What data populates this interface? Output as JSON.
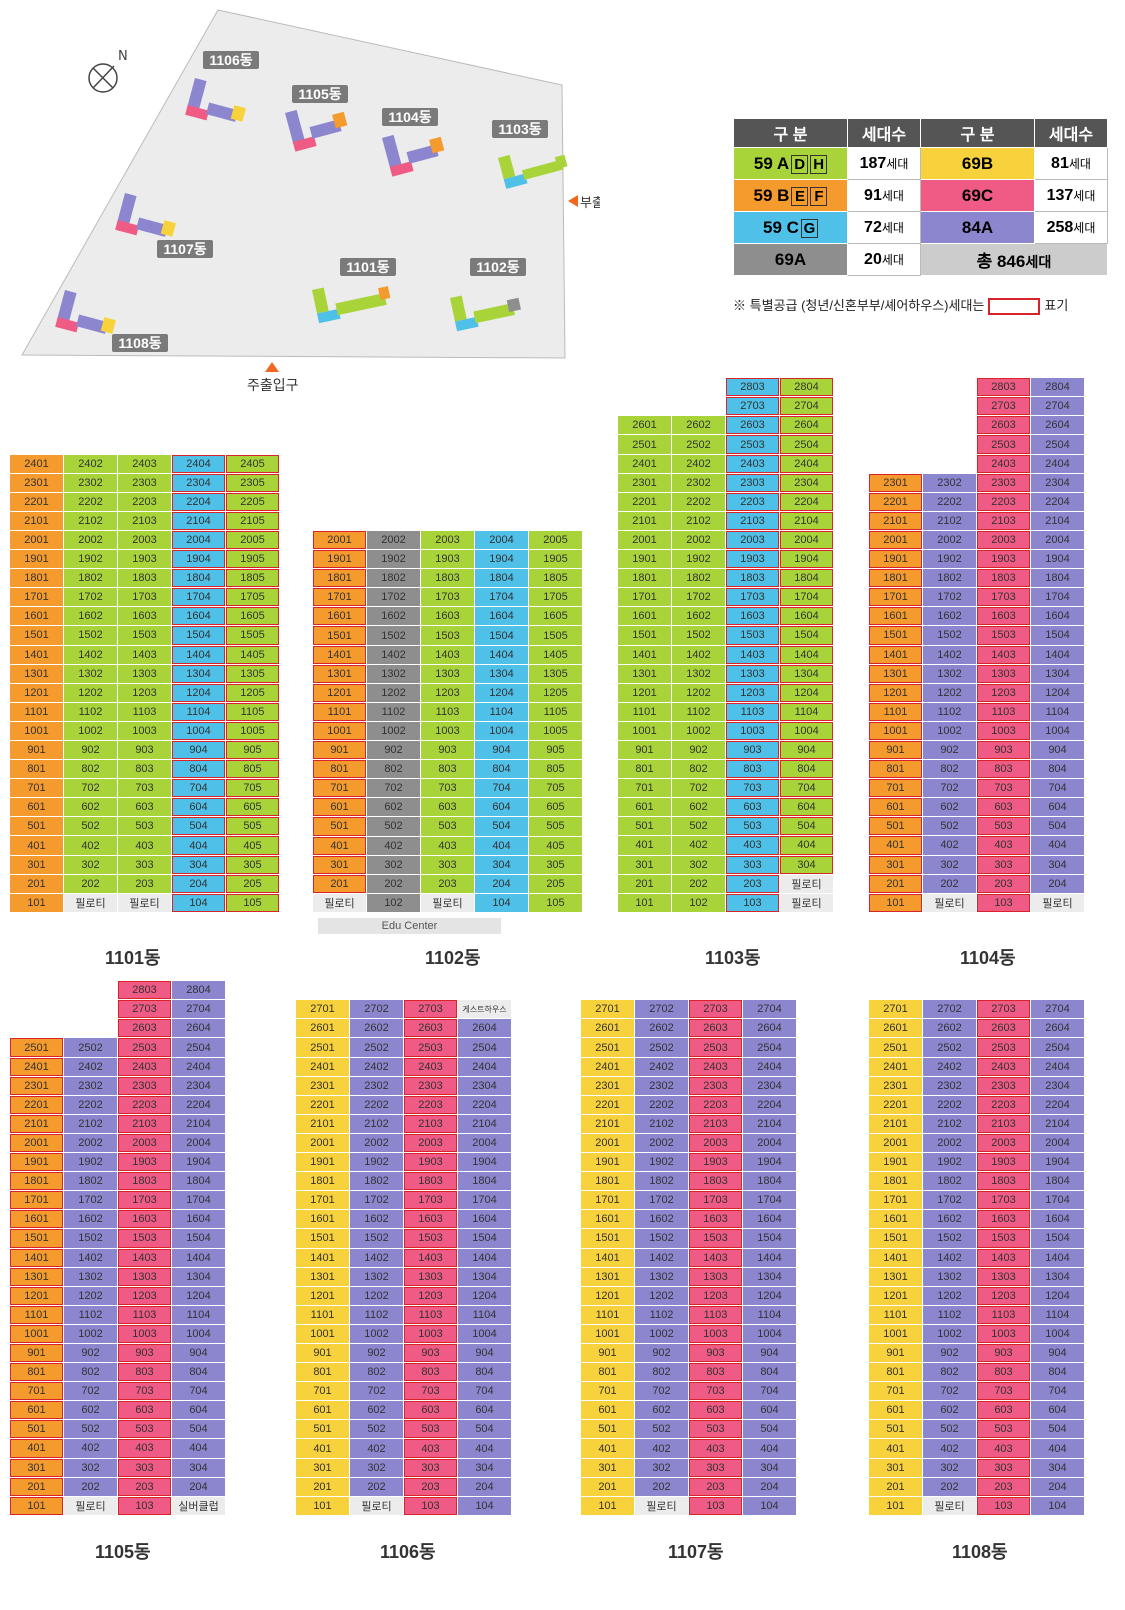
{
  "colors": {
    "59A": "#a8d43a",
    "59B": "#f59a2c",
    "59C": "#4fc0e8",
    "69A": "#8e8e8e",
    "69B": "#f7d23c",
    "69C": "#ef5b84",
    "84A": "#8c86cf"
  },
  "map": {
    "compass": "N",
    "buildings": [
      "1101동",
      "1102동",
      "1103동",
      "1104동",
      "1105동",
      "1106동",
      "1107동",
      "1108동"
    ],
    "entrance_main": "주출입구",
    "entrance_sub": "부출입구"
  },
  "legend": {
    "headers": [
      "구 분",
      "세대수",
      "구 분",
      "세대수"
    ],
    "rows": [
      {
        "t1": "59 A",
        "b1": [
          "D",
          "H"
        ],
        "n1": "187",
        "t2": "69B",
        "n2": "81"
      },
      {
        "t1": "59 B",
        "b1": [
          "E",
          "F"
        ],
        "n1": "91",
        "t2": "69C",
        "n2": "137"
      },
      {
        "t1": "59 C",
        "b1": [
          "G"
        ],
        "n1": "72",
        "t2": "84A",
        "n2": "258"
      },
      {
        "t1": "69A",
        "b1": [],
        "n1": "20",
        "t2": "총",
        "n2": "846"
      }
    ],
    "unit": "세대",
    "note_pre": "※ 특별공급 (청년/신혼부부/셰어하우스)세대는",
    "note_post": "표기"
  },
  "special": {
    "pilotis": "필로티",
    "edu": "Edu Center",
    "guest": "게스트하우스",
    "silver": "실버클럽"
  },
  "buildings": [
    {
      "name": "1101동",
      "cols": [
        "59B",
        "59A",
        "59A",
        "59C",
        "59A"
      ],
      "top": [
        24,
        24,
        24,
        24,
        24
      ],
      "ground": [
        null,
        "P",
        "P",
        null,
        null
      ],
      "sp": [
        3,
        4
      ]
    },
    {
      "name": "1102동",
      "cols": [
        "59B",
        "69A",
        "59A",
        "59C",
        "59A"
      ],
      "top": [
        20,
        20,
        20,
        20,
        20
      ],
      "ground": [
        "P",
        null,
        "P",
        null,
        null
      ],
      "sp": [
        0
      ]
    },
    {
      "name": "1103동",
      "cols": [
        "59A",
        "59A",
        "59C",
        "59A"
      ],
      "top": [
        26,
        26,
        28,
        28
      ],
      "ground": [
        null,
        null,
        null,
        "P"
      ],
      "sp": [
        2,
        3
      ],
      "low": [
        "P2"
      ]
    },
    {
      "name": "1104동",
      "cols": [
        "59B",
        "84A",
        "69C",
        "84A"
      ],
      "top": [
        23,
        23,
        28,
        28
      ],
      "ground": [
        null,
        "P",
        null,
        "P"
      ],
      "sp": [
        0,
        2
      ]
    },
    {
      "name": "1105동",
      "cols": [
        "59B",
        "84A",
        "69C",
        "84A"
      ],
      "top": [
        25,
        25,
        28,
        28
      ],
      "ground": [
        null,
        "P",
        null,
        "S"
      ],
      "sp": [
        0,
        2
      ]
    },
    {
      "name": "1106동",
      "cols": [
        "69B",
        "84A",
        "69C",
        "84A"
      ],
      "top": [
        27,
        27,
        27,
        27
      ],
      "ground": [
        null,
        "P",
        null,
        null
      ],
      "sp": [
        2
      ],
      "guest": true
    },
    {
      "name": "1107동",
      "cols": [
        "69B",
        "84A",
        "69C",
        "84A"
      ],
      "top": [
        27,
        27,
        27,
        27
      ],
      "ground": [
        null,
        "P",
        null,
        null
      ],
      "sp": [
        2
      ]
    },
    {
      "name": "1108동",
      "cols": [
        "69B",
        "84A",
        "69C",
        "84A"
      ],
      "top": [
        27,
        27,
        27,
        27
      ],
      "ground": [
        null,
        "P",
        null,
        null
      ],
      "sp": [
        2
      ]
    }
  ]
}
